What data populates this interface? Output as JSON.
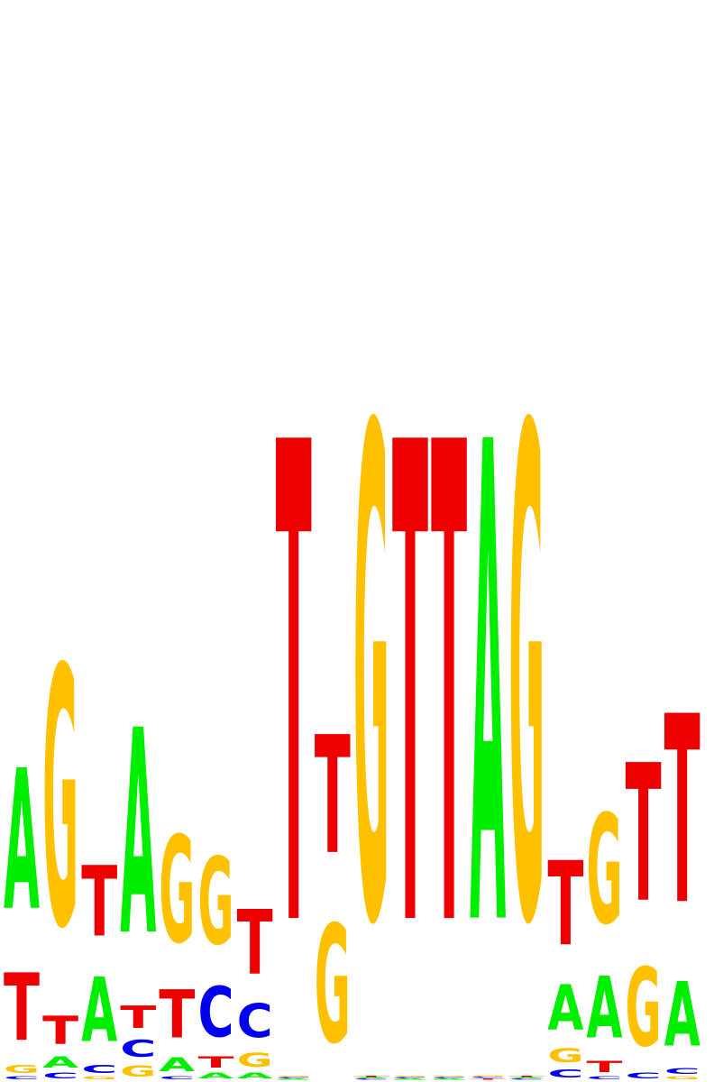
{
  "logo": {
    "type": "sequence-logo",
    "alphabet": [
      "A",
      "C",
      "G",
      "T"
    ],
    "colors": {
      "A": "#00ee00",
      "C": "#0000ee",
      "G": "#ffc000",
      "T": "#ee0000"
    },
    "columns": [
      {
        "position": 1,
        "letters": [
          [
            "C",
            0.005
          ],
          [
            "G",
            0.015
          ],
          [
            "T",
            0.12
          ],
          [
            "A",
            0.25
          ]
        ]
      },
      {
        "position": 2,
        "letters": [
          [
            "C",
            0.01
          ],
          [
            "A",
            0.02
          ],
          [
            "T",
            0.05
          ],
          [
            "G",
            0.46
          ]
        ]
      },
      {
        "position": 3,
        "letters": [
          [
            "G",
            0.005
          ],
          [
            "C",
            0.015
          ],
          [
            "A",
            0.115
          ],
          [
            "T",
            0.125
          ]
        ]
      },
      {
        "position": 4,
        "letters": [
          [
            "G",
            0.02
          ],
          [
            "C",
            0.03
          ],
          [
            "T",
            0.04
          ],
          [
            "A",
            0.365
          ]
        ]
      },
      {
        "position": 5,
        "letters": [
          [
            "C",
            0.005
          ],
          [
            "A",
            0.025
          ],
          [
            "T",
            0.085
          ],
          [
            "G",
            0.19
          ]
        ]
      },
      {
        "position": 6,
        "letters": [
          [
            "A",
            0.01
          ],
          [
            "T",
            0.02
          ],
          [
            "C",
            0.09
          ],
          [
            "G",
            0.155
          ]
        ]
      },
      {
        "position": 7,
        "letters": [
          [
            "A",
            0.01
          ],
          [
            "G",
            0.025
          ],
          [
            "C",
            0.06
          ],
          [
            "T",
            0.115
          ]
        ]
      },
      {
        "position": 8,
        "letters": [
          [
            "A",
            0.001
          ],
          [
            "C",
            0.001
          ],
          [
            "G",
            0.001
          ],
          [
            "T",
            0.855
          ]
        ]
      },
      {
        "position": 9,
        "letters": [
          [
            "G",
            0.21
          ],
          [
            "T",
            0.21
          ]
        ]
      },
      {
        "position": 10,
        "letters": [
          [
            "C",
            0.001
          ],
          [
            "A",
            0.001
          ],
          [
            "T",
            0.001
          ],
          [
            "G",
            0.875
          ]
        ]
      },
      {
        "position": 11,
        "letters": [
          [
            "A",
            0.001
          ],
          [
            "C",
            0.001
          ],
          [
            "G",
            0.001
          ],
          [
            "T",
            0.855
          ]
        ]
      },
      {
        "position": 12,
        "letters": [
          [
            "A",
            0.001
          ],
          [
            "C",
            0.001
          ],
          [
            "G",
            0.001
          ],
          [
            "T",
            0.855
          ]
        ]
      },
      {
        "position": 13,
        "letters": [
          [
            "T",
            0.002
          ],
          [
            "C",
            0.001
          ],
          [
            "G",
            0.001
          ],
          [
            "A",
            0.855
          ]
        ]
      },
      {
        "position": 14,
        "letters": [
          [
            "C",
            0.001
          ],
          [
            "A",
            0.001
          ],
          [
            "T",
            0.001
          ],
          [
            "G",
            0.875
          ]
        ]
      },
      {
        "position": 15,
        "letters": [
          [
            "C",
            0.015
          ],
          [
            "G",
            0.025
          ],
          [
            "A",
            0.08
          ],
          [
            "T",
            0.15
          ]
        ]
      },
      {
        "position": 16,
        "letters": [
          [
            "C",
            0.005
          ],
          [
            "T",
            0.02
          ],
          [
            "A",
            0.11
          ],
          [
            "G",
            0.195
          ]
        ]
      },
      {
        "position": 17,
        "letters": [
          [
            "C",
            0.01
          ],
          [
            "G",
            0.14
          ],
          [
            "T",
            0.245
          ]
        ]
      },
      {
        "position": 18,
        "letters": [
          [
            "G",
            0.005
          ],
          [
            "C",
            0.01
          ],
          [
            "A",
            0.115
          ],
          [
            "T",
            0.335
          ]
        ]
      }
    ]
  }
}
